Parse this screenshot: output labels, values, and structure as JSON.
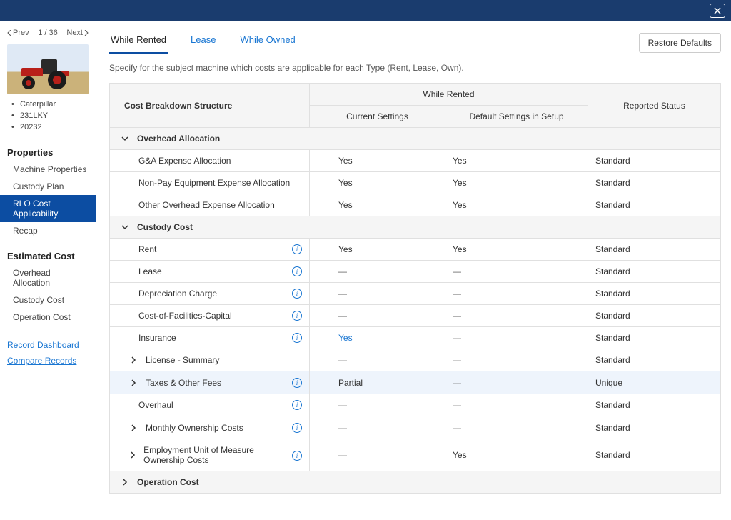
{
  "colors": {
    "brand": "#1a3c6e",
    "accent": "#0c4da2",
    "link": "#1976d2"
  },
  "topbar": {},
  "paging": {
    "prev": "Prev",
    "pos": "1 / 36",
    "next": "Next"
  },
  "meta": {
    "make": "Caterpillar",
    "model": "231LKY",
    "serial": "20232"
  },
  "nav": {
    "properties": {
      "title": "Properties",
      "items": [
        "Machine Properties",
        "Custody Plan",
        "RLO Cost Applicability",
        "Recap"
      ]
    },
    "estimated": {
      "title": "Estimated Cost",
      "items": [
        "Overhead Allocation",
        "Custody Cost",
        "Operation Cost"
      ]
    }
  },
  "links": {
    "dashboard": "Record Dashboard",
    "compare": "Compare Records"
  },
  "tabs": {
    "rented": "While Rented",
    "lease": "Lease",
    "owned": "While Owned"
  },
  "actions": {
    "restore": "Restore Defaults"
  },
  "subtitle": "Specify for the subject machine which costs are applicable for each Type (Rent, Lease, Own).",
  "table": {
    "head": {
      "cbs": "Cost Breakdown Structure",
      "group": "While Rented",
      "status": "Reported Status",
      "cur": "Current Settings",
      "def": "Default Settings in Setup"
    },
    "groups": {
      "overhead": {
        "label": "Overhead Allocation",
        "rows": [
          {
            "label": "G&A Expense Allocation",
            "cur": "Yes",
            "def": "Yes",
            "status": "Standard",
            "info": false
          },
          {
            "label": "Non-Pay Equipment Expense Allocation",
            "cur": "Yes",
            "def": "Yes",
            "status": "Standard",
            "info": false
          },
          {
            "label": "Other Overhead Expense Allocation",
            "cur": "Yes",
            "def": "Yes",
            "status": "Standard",
            "info": false
          }
        ]
      },
      "custody": {
        "label": "Custody Cost",
        "rows": [
          {
            "label": "Rent",
            "cur": "Yes",
            "def": "Yes",
            "status": "Standard",
            "info": true
          },
          {
            "label": "Lease",
            "cur": "—",
            "def": "—",
            "status": "Standard",
            "info": true
          },
          {
            "label": "Depreciation Charge",
            "cur": "—",
            "def": "—",
            "status": "Standard",
            "info": true
          },
          {
            "label": "Cost-of-Facilities-Capital",
            "cur": "—",
            "def": "—",
            "status": "Standard",
            "info": true
          },
          {
            "label": "Insurance",
            "cur": "Yes",
            "curlink": true,
            "def": "—",
            "status": "Standard",
            "info": true
          },
          {
            "label": "License - Summary",
            "cur": "—",
            "def": "—",
            "status": "Standard",
            "expand": true
          },
          {
            "label": "Taxes & Other Fees",
            "cur": "Partial",
            "def": "—",
            "status": "Unique",
            "info": true,
            "expand": true,
            "hl": true
          },
          {
            "label": "Overhaul",
            "cur": "—",
            "def": "—",
            "status": "Standard",
            "info": true
          },
          {
            "label": "Monthly Ownership Costs",
            "cur": "—",
            "def": "—",
            "status": "Standard",
            "info": true,
            "expand": true
          },
          {
            "label": "Employment Unit of Measure Ownership Costs",
            "cur": "—",
            "def": "Yes",
            "status": "Standard",
            "info": true,
            "expand": true
          }
        ]
      },
      "operation": {
        "label": "Operation Cost"
      }
    }
  }
}
